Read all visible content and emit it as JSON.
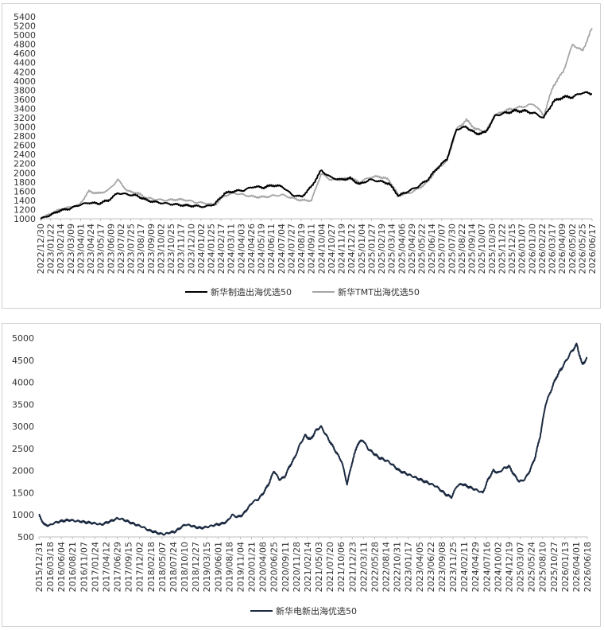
{
  "chart_data": [
    {
      "type": "line",
      "ylim": [
        1000,
        5400
      ],
      "yticks": [
        1000,
        1200,
        1400,
        1600,
        1800,
        2000,
        2200,
        2400,
        2600,
        2800,
        3000,
        3200,
        3400,
        3600,
        3800,
        4000,
        4200,
        4400,
        4600,
        4800,
        5000,
        5200,
        5400
      ],
      "xtick_labels": [
        "2022/12/30",
        "2023/01/22",
        "2023/02/14",
        "2023/03/09",
        "2023/04/01",
        "2023/04/24",
        "2023/05/17",
        "2023/06/09",
        "2023/07/02",
        "2023/07/25",
        "2023/08/17",
        "2023/09/09",
        "2023/10/02",
        "2023/10/25",
        "2023/11/17",
        "2023/12/10",
        "2024/01/02",
        "2024/01/25",
        "2024/02/17",
        "2024/03/11",
        "2024/04/03",
        "2024/04/26",
        "2024/05/19",
        "2024/06/11",
        "2024/07/04",
        "2024/07/27",
        "2024/08/19",
        "2024/09/11",
        "2024/10/04",
        "2024/10/27",
        "2024/11/19",
        "2024/12/12",
        "2025/01/04",
        "2025/01/27",
        "2025/02/19",
        "2025/03/14",
        "2025/04/06",
        "2025/04/29",
        "2025/05/22",
        "2025/06/14",
        "2025/07/07",
        "2025/07/30",
        "2025/08/22",
        "2025/09/14",
        "2025/10/07",
        "2025/10/30",
        "2025/11/22",
        "2025/12/15",
        "2026/01/07",
        "2026/01/30",
        "2026/02/22",
        "2026/03/17",
        "2026/04/09",
        "2026/05/02",
        "2026/05/25",
        "2026/06/17"
      ],
      "legend_position": "bottom",
      "series": [
        {
          "name": "新华制造出海优选50",
          "color": "#000000",
          "values": [
            1000,
            1080,
            1180,
            1220,
            1300,
            1350,
            1330,
            1400,
            1560,
            1530,
            1500,
            1400,
            1360,
            1330,
            1310,
            1290,
            1280,
            1260,
            1320,
            1550,
            1600,
            1620,
            1700,
            1680,
            1730,
            1700,
            1520,
            1480,
            1700,
            2050,
            1900,
            1850,
            1880,
            1750,
            1850,
            1820,
            1770,
            1500,
            1600,
            1700,
            1850,
            2100,
            2300,
            2950,
            3000,
            2850,
            2880,
            3250,
            3300,
            3350,
            3350,
            3300,
            3200,
            3550,
            3650,
            3650,
            3750,
            3720
          ]
        },
        {
          "name": "新华TMT出海优选50",
          "color": "#a6a6a6",
          "values": [
            1000,
            1100,
            1200,
            1250,
            1300,
            1600,
            1550,
            1620,
            1850,
            1600,
            1560,
            1450,
            1420,
            1400,
            1420,
            1410,
            1360,
            1340,
            1300,
            1500,
            1560,
            1520,
            1480,
            1470,
            1500,
            1520,
            1450,
            1400,
            1400,
            1980,
            1850,
            1860,
            1880,
            1800,
            1900,
            1920,
            1850,
            1510,
            1550,
            1650,
            1800,
            2100,
            2250,
            2950,
            3150,
            2950,
            2900,
            3250,
            3350,
            3400,
            3450,
            3500,
            3250,
            3900,
            4200,
            4800,
            4650,
            5150
          ]
        }
      ]
    },
    {
      "type": "line",
      "ylim": [
        500,
        5000
      ],
      "yticks": [
        500,
        1000,
        1500,
        2000,
        2500,
        3000,
        3500,
        4000,
        4500,
        5000
      ],
      "xtick_labels": [
        "2015/12/31",
        "2016/03/18",
        "2016/06/04",
        "2016/08/21",
        "2016/11/07",
        "2017/01/24",
        "2017/04/12",
        "2017/06/29",
        "2017/09/15",
        "2017/12/02",
        "2018/02/18",
        "2018/05/07",
        "2018/07/24",
        "2018/10/10",
        "2018/12/27",
        "2019/03/15",
        "2019/06/01",
        "2019/08/18",
        "2019/11/04",
        "2020/01/21",
        "2020/04/08",
        "2020/06/25",
        "2020/09/11",
        "2020/11/28",
        "2021/02/14",
        "2021/05/03",
        "2021/07/20",
        "2021/10/06",
        "2021/12/23",
        "2022/03/11",
        "2022/05/28",
        "2022/08/14",
        "2022/10/31",
        "2023/01/17",
        "2023/04/05",
        "2023/06/22",
        "2023/09/08",
        "2023/11/25",
        "2024/02/11",
        "2024/04/29",
        "2024/07/16",
        "2024/10/02",
        "2024/12/19",
        "2025/03/07",
        "2025/05/24",
        "2025/08/10",
        "2025/10/27",
        "2026/01/13",
        "2026/04/01",
        "2026/06/18"
      ],
      "legend_position": "bottom",
      "series": [
        {
          "name": "新华电新出海优选50",
          "color": "#1b2a41",
          "values": [
            1000,
            780,
            760,
            820,
            850,
            870,
            880,
            860,
            850,
            830,
            820,
            800,
            780,
            830,
            870,
            920,
            900,
            850,
            800,
            760,
            720,
            650,
            620,
            580,
            560,
            600,
            620,
            700,
            780,
            760,
            720,
            700,
            720,
            750,
            780,
            800,
            850,
            1000,
            950,
            1000,
            1150,
            1300,
            1350,
            1500,
            1700,
            2000,
            1800,
            1850,
            2100,
            2300,
            2600,
            2800,
            2700,
            2900,
            3000,
            2800,
            2600,
            2400,
            2200,
            1700,
            2200,
            2600,
            2700,
            2500,
            2400,
            2300,
            2250,
            2200,
            2100,
            2000,
            1950,
            1900,
            1850,
            1800,
            1750,
            1700,
            1650,
            1550,
            1450,
            1400,
            1650,
            1700,
            1650,
            1600,
            1550,
            1500,
            1800,
            2000,
            1950,
            2050,
            2100,
            1900,
            1750,
            1800,
            2000,
            2300,
            2800,
            3500,
            3800,
            4100,
            4300,
            4500,
            4700,
            4850,
            4400,
            4550
          ]
        }
      ]
    }
  ]
}
